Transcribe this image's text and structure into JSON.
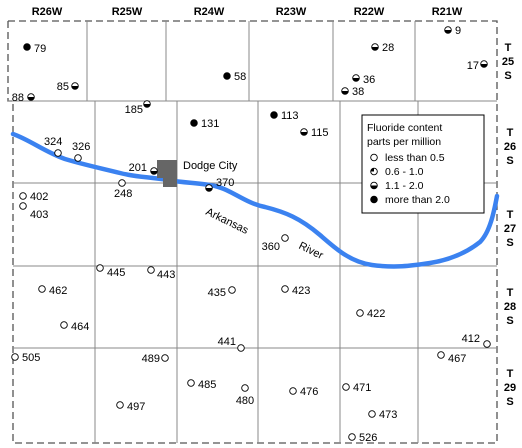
{
  "ranges": [
    "R26W",
    "R25W",
    "R24W",
    "R23W",
    "R22W",
    "R21W"
  ],
  "townships": [
    {
      "t": "T",
      "n": "25",
      "s": "S"
    },
    {
      "t": "T",
      "n": "26",
      "s": "S"
    },
    {
      "t": "T",
      "n": "27",
      "s": "S"
    },
    {
      "t": "T",
      "n": "28",
      "s": "S"
    },
    {
      "t": "T",
      "n": "29",
      "s": "S"
    }
  ],
  "city": {
    "name": "Dodge City"
  },
  "river": {
    "word1": "Arkansas",
    "word2": "River"
  },
  "legend": {
    "title_line1": "Fluoride content",
    "title_line2": "parts per million",
    "items": [
      {
        "label": "less than 0.5",
        "symbol": "empty"
      },
      {
        "label": "0.6 - 1.0",
        "symbol": "quarter"
      },
      {
        "label": "1.1 - 2.0",
        "symbol": "half"
      },
      {
        "label": "more than 2.0",
        "symbol": "full"
      }
    ]
  },
  "colors": {
    "river": "#3b82f0",
    "city": "#666666",
    "border": "#555555",
    "grid": "#888888"
  },
  "wells": [
    {
      "id": "79",
      "symbol": "full"
    },
    {
      "id": "85",
      "symbol": "half"
    },
    {
      "id": "88",
      "symbol": "half"
    },
    {
      "id": "58",
      "symbol": "full"
    },
    {
      "id": "28",
      "symbol": "half"
    },
    {
      "id": "36",
      "symbol": "half"
    },
    {
      "id": "38",
      "symbol": "half"
    },
    {
      "id": "9",
      "symbol": "half"
    },
    {
      "id": "17",
      "symbol": "half"
    },
    {
      "id": "185",
      "symbol": "half"
    },
    {
      "id": "131",
      "symbol": "full"
    },
    {
      "id": "113",
      "symbol": "full"
    },
    {
      "id": "115",
      "symbol": "half"
    },
    {
      "id": "324",
      "symbol": "empty"
    },
    {
      "id": "326",
      "symbol": "empty"
    },
    {
      "id": "201",
      "symbol": "half"
    },
    {
      "id": "248",
      "symbol": "empty"
    },
    {
      "id": "370",
      "symbol": "half"
    },
    {
      "id": "402",
      "symbol": "empty"
    },
    {
      "id": "403",
      "symbol": "empty"
    },
    {
      "id": "360",
      "symbol": "empty"
    },
    {
      "id": "445",
      "symbol": "empty"
    },
    {
      "id": "443",
      "symbol": "empty"
    },
    {
      "id": "462",
      "symbol": "empty"
    },
    {
      "id": "435",
      "symbol": "empty"
    },
    {
      "id": "423",
      "symbol": "empty"
    },
    {
      "id": "464",
      "symbol": "empty"
    },
    {
      "id": "422",
      "symbol": "empty"
    },
    {
      "id": "412",
      "symbol": "empty"
    },
    {
      "id": "505",
      "symbol": "empty"
    },
    {
      "id": "489",
      "symbol": "empty"
    },
    {
      "id": "441",
      "symbol": "empty"
    },
    {
      "id": "467",
      "symbol": "empty"
    },
    {
      "id": "485",
      "symbol": "empty"
    },
    {
      "id": "480",
      "symbol": "empty"
    },
    {
      "id": "476",
      "symbol": "empty"
    },
    {
      "id": "471",
      "symbol": "empty"
    },
    {
      "id": "497",
      "symbol": "empty"
    },
    {
      "id": "473",
      "symbol": "empty"
    },
    {
      "id": "526",
      "symbol": "empty"
    }
  ]
}
